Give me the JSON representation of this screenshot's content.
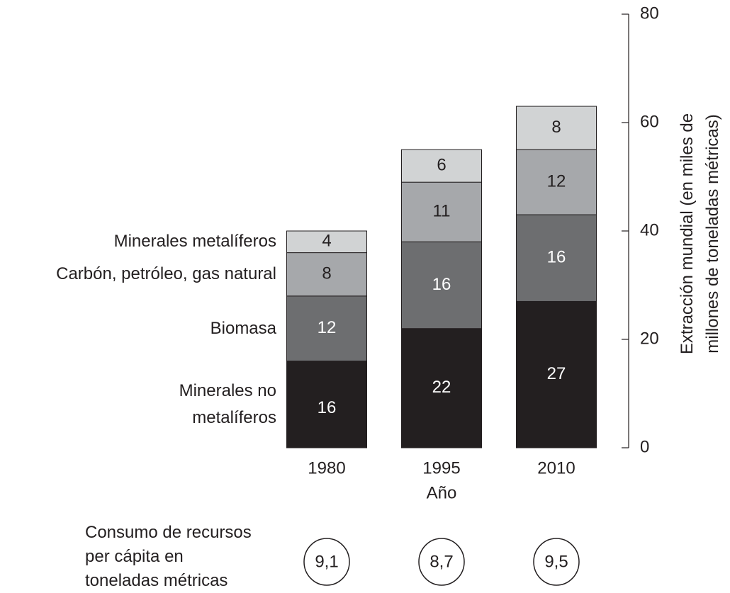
{
  "chart_data": {
    "type": "bar",
    "stacked": true,
    "categories": [
      "1980",
      "1995",
      "2010"
    ],
    "x_label": "Año",
    "y_label": "Extracción mundial (en miles de millones de toneladas métricas)",
    "series": [
      {
        "name": "Minerales no metalíferos",
        "color": "#231f20",
        "values": [
          16,
          22,
          27
        ]
      },
      {
        "name": "Biomasa",
        "color": "#6d6e70",
        "values": [
          12,
          16,
          16
        ]
      },
      {
        "name": "Carbón, petróleo, gas natural",
        "color": "#a6a8ab",
        "values": [
          8,
          11,
          12
        ]
      },
      {
        "name": "Minerales metalíferos",
        "color": "#d1d3d4",
        "values": [
          4,
          6,
          8
        ]
      }
    ],
    "ylim": [
      0,
      80
    ],
    "yticks": [
      0,
      20,
      40,
      60,
      80
    ],
    "per_capita": {
      "label": "Consumo de recursos per cápita en toneladas métricas",
      "values": [
        9.1,
        8.7,
        9.5
      ],
      "value_labels": [
        "9,1",
        "8,7",
        "9,5"
      ]
    }
  }
}
